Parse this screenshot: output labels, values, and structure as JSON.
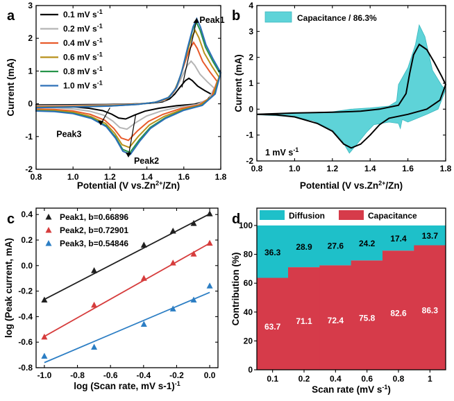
{
  "chart_data": [
    {
      "panel": "a",
      "type": "line",
      "title": "",
      "xlabel": "Potential (V vs.Zn2+/Zn)",
      "ylabel": "Current (mA)",
      "xlim": [
        0.8,
        1.8
      ],
      "ylim": [
        -2,
        3
      ],
      "xticks": [
        "0.8",
        "1.0",
        "1.2",
        "1.4",
        "1.6",
        "1.8"
      ],
      "yticks": [
        "-2",
        "-1",
        "0",
        "1",
        "2",
        "3"
      ],
      "series": [
        {
          "name": "0.1 mV s-1",
          "color": "#000000",
          "scale": 0.3
        },
        {
          "name": "0.2 mV s-1",
          "color": "#b5b5b5",
          "scale": 0.5
        },
        {
          "name": "0.4 mV s-1",
          "color": "#e85a2a",
          "scale": 0.72
        },
        {
          "name": "0.6 mV s-1",
          "color": "#b8901a",
          "scale": 0.86
        },
        {
          "name": "0.8 mV s-1",
          "color": "#26944a",
          "scale": 0.96
        },
        {
          "name": "1.0 mV s-1",
          "color": "#2c6fb8",
          "scale": 1.0
        }
      ],
      "annotations": [
        "Peak1",
        "Peak2",
        "Peak3"
      ]
    },
    {
      "panel": "b",
      "type": "area",
      "xlabel": "Potential (V vs.Zn2+/Zn)",
      "ylabel": "Current (mA)",
      "xlim": [
        0.8,
        1.8
      ],
      "ylim": [
        -2,
        4
      ],
      "xticks": [
        "0.8",
        "1.0",
        "1.2",
        "1.4",
        "1.6",
        "1.8"
      ],
      "yticks": [
        "-2",
        "-1",
        "0",
        "1",
        "2",
        "3",
        "4"
      ],
      "legend": "Capacitance / 86.3%",
      "fill_color": "#5ed3d8",
      "annotation": "1 mV s-1"
    },
    {
      "panel": "c",
      "type": "scatter",
      "xlabel": "log (Scan rate, mV s-1)",
      "ylabel": "log (Peak current, mA)",
      "xlim": [
        -1.05,
        0.05
      ],
      "ylim": [
        -0.8,
        0.45
      ],
      "xticks": [
        "-1.0",
        "-0.8",
        "-0.6",
        "-0.4",
        "-0.2",
        "0.0"
      ],
      "yticks": [
        "-0.8",
        "-0.6",
        "-0.4",
        "-0.2",
        "0.0",
        "0.2",
        "0.4"
      ],
      "x": [
        -1.0,
        -0.699,
        -0.398,
        -0.222,
        -0.097,
        0.0
      ],
      "series": [
        {
          "name": "Peak1, b=0.66896",
          "color": "#1f1f1f",
          "values": [
            -0.27,
            -0.04,
            0.16,
            0.27,
            0.33,
            0.405
          ],
          "fit": [
            -0.265,
            0.405
          ]
        },
        {
          "name": "Peak2, b=0.72901",
          "color": "#d63c3c",
          "values": [
            -0.56,
            -0.31,
            -0.1,
            0.02,
            0.09,
            0.175
          ],
          "fit": [
            -0.555,
            0.175
          ]
        },
        {
          "name": "Peak3, b=0.54846",
          "color": "#2c7ec4",
          "values": [
            -0.71,
            -0.64,
            -0.46,
            -0.34,
            -0.27,
            -0.16
          ],
          "fit": [
            -0.76,
            -0.21
          ]
        }
      ]
    },
    {
      "panel": "d",
      "type": "bar",
      "stacked": true,
      "xlabel": "Scan rate (mV s-1)",
      "ylabel": "Contribution (%)",
      "ylim": [
        0,
        100
      ],
      "yticks": [
        "0",
        "20",
        "40",
        "60",
        "80",
        "100"
      ],
      "categories": [
        "0.1",
        "0.2",
        "0.4",
        "0.6",
        "0.8",
        "1"
      ],
      "series": [
        {
          "name": "Capacitance",
          "color": "#d63b4a",
          "values": [
            63.7,
            71.1,
            72.4,
            75.8,
            82.6,
            86.3
          ]
        },
        {
          "name": "Diffusion",
          "color": "#1ec0c9",
          "values": [
            36.3,
            28.9,
            27.6,
            24.2,
            17.4,
            13.7
          ]
        }
      ],
      "labels": {
        "capacitance": [
          "63.7",
          "71.1",
          "72.4",
          "75.8",
          "82.6",
          "86.3"
        ],
        "diffusion": [
          "36.3",
          "28.9",
          "27.6",
          "24.2",
          "17.4",
          "13.7"
        ]
      }
    }
  ],
  "panel_labels": [
    "a",
    "b",
    "c",
    "d"
  ],
  "units": {
    "mv_s": "mV s",
    "minus1": "-1",
    "zn_a": "Potential (V vs.Zn",
    "zn_b": "2+",
    "zn_c": "/Zn)"
  }
}
